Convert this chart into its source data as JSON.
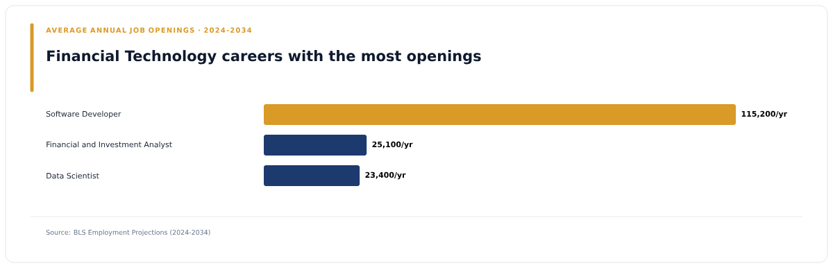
{
  "chart_data": {
    "type": "bar",
    "orientation": "horizontal",
    "subtitle": "AVERAGE ANNUAL JOB OPENINGS · 2024-2034",
    "title": "Financial Technology careers with the most openings",
    "categories": [
      "Software Developer",
      "Financial and Investment Analyst",
      "Data Scientist"
    ],
    "values": [
      115200,
      25100,
      23400
    ],
    "colors": [
      "#d99a28",
      "#1d3a6e",
      "#1d3a6e"
    ],
    "value_labels": [
      "115,200/yr",
      "25,100/yr",
      "23,400/yr"
    ],
    "annotations": [
      "Source: BLS Employment Projections (2024-2034)"
    ]
  }
}
